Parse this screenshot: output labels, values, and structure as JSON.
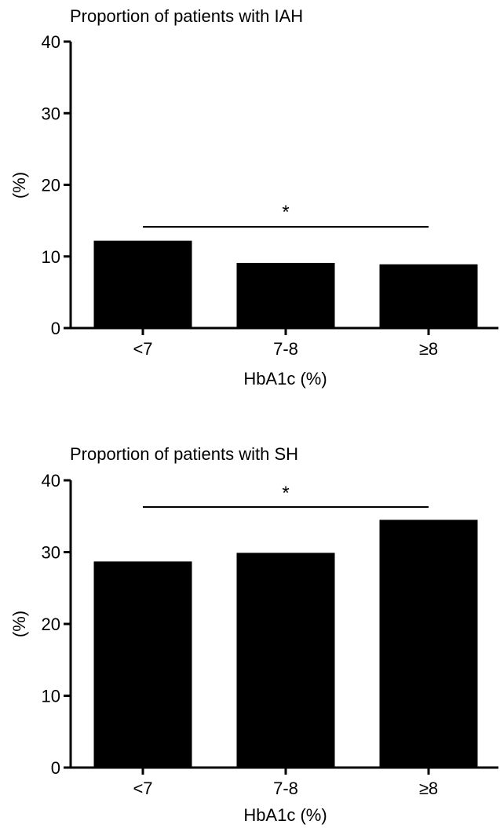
{
  "chart_data": [
    {
      "type": "bar",
      "title": "Proportion of patients with IAH",
      "xlabel": "HbA1c (%)",
      "ylabel": "(%)",
      "categories": [
        "<7",
        "7-8",
        "≥8"
      ],
      "values": [
        12.2,
        9.1,
        8.9
      ],
      "ylim": [
        0,
        40
      ],
      "yticks": [
        "0",
        "10",
        "20",
        "30",
        "40"
      ],
      "grid": false,
      "colors": {
        "bar": "#000000",
        "axis": "#000000"
      },
      "significance": {
        "label": "*",
        "from_category": "<7",
        "to_category": "≥8"
      }
    },
    {
      "type": "bar",
      "title": "Proportion of patients with SH",
      "xlabel": "HbA1c (%)",
      "ylabel": "(%)",
      "categories": [
        "<7",
        "7-8",
        "≥8"
      ],
      "values": [
        28.7,
        29.9,
        34.5
      ],
      "ylim": [
        0,
        40
      ],
      "yticks": [
        "0",
        "10",
        "20",
        "30",
        "40"
      ],
      "grid": false,
      "colors": {
        "bar": "#000000",
        "axis": "#000000"
      },
      "significance": {
        "label": "*",
        "from_category": "<7",
        "to_category": "≥8"
      }
    }
  ]
}
